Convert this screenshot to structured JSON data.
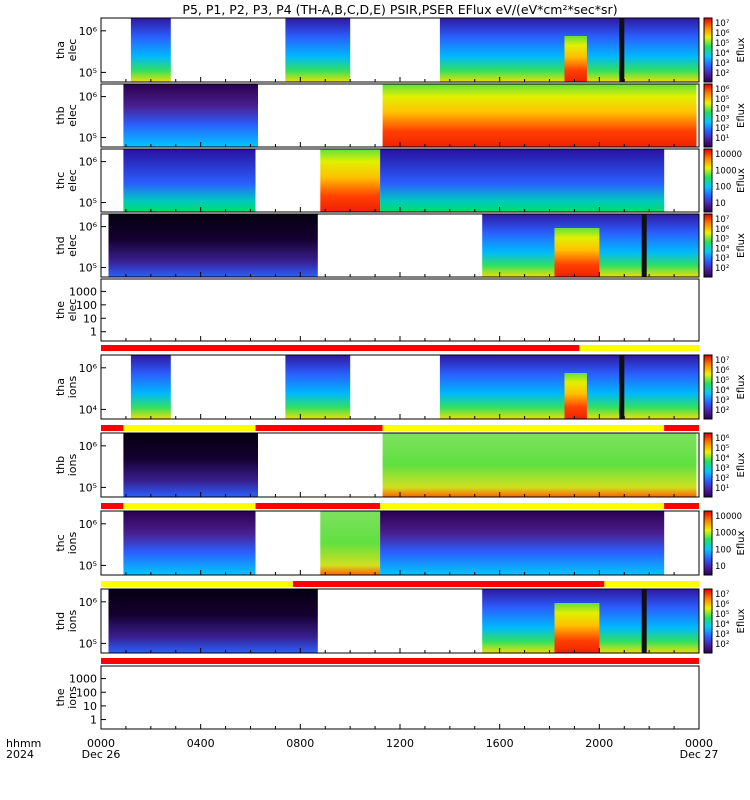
{
  "chart_data": {
    "type": "heatmap",
    "title": "P5, P1, P2, P3, P4 (TH-A,B,C,D,E) PSIR,PSER EFlux eV/(eV*cm²*sec*sr)",
    "colorbar_label": "Eflux",
    "x_axis": {
      "row_label_1": "hhmm",
      "row_label_2": "2024",
      "ticks": [
        "0000",
        "0400",
        "0800",
        "1200",
        "1600",
        "2000",
        "0000"
      ],
      "date_labels": [
        "Dec 26",
        "Dec 27"
      ],
      "range_hours": [
        0,
        24
      ]
    },
    "panels": [
      {
        "name": "tha elec",
        "y_label_1": "tha",
        "y_label_2": "elec",
        "y_ticks": [
          "10⁶",
          "10⁵"
        ],
        "colorbar_ticks": [
          "10⁷",
          "10⁶",
          "10⁵",
          "10⁴",
          "10³",
          "10²"
        ],
        "segments_hours": [
          [
            1.2,
            2.8
          ],
          [
            7.4,
            10.0
          ],
          [
            13.6,
            24.0
          ]
        ]
      },
      {
        "name": "thb elec",
        "y_label_1": "thb",
        "y_label_2": "elec",
        "y_ticks": [
          "10⁶",
          "10⁵"
        ],
        "colorbar_ticks": [
          "10⁶",
          "10⁵",
          "10⁴",
          "10³",
          "10²",
          "10¹"
        ],
        "segments_hours": [
          [
            0.9,
            6.3
          ],
          [
            11.3,
            23.9
          ]
        ]
      },
      {
        "name": "thc elec",
        "y_label_1": "thc",
        "y_label_2": "elec",
        "y_ticks": [
          "10⁶",
          "10⁵"
        ],
        "colorbar_ticks": [
          "10000",
          "1000",
          "100",
          "10"
        ],
        "segments_hours": [
          [
            0.9,
            6.2
          ],
          [
            8.8,
            11.2
          ],
          [
            11.2,
            22.6
          ]
        ]
      },
      {
        "name": "thd elec",
        "y_label_1": "thd",
        "y_label_2": "elec",
        "y_ticks": [
          "10⁶",
          "10⁵"
        ],
        "colorbar_ticks": [
          "10⁷",
          "10⁶",
          "10⁵",
          "10⁴",
          "10³",
          "10²"
        ],
        "segments_hours": [
          [
            0.3,
            8.7
          ],
          [
            15.3,
            24.0
          ]
        ]
      },
      {
        "name": "the elec",
        "y_label_1": "the",
        "y_label_2": "elec",
        "y_ticks": [
          "1000",
          "100",
          "10",
          "1"
        ],
        "segments_hours": []
      },
      {
        "name": "tha ions",
        "y_label_1": "tha",
        "y_label_2": "ions",
        "y_ticks": [
          "10⁶",
          "10⁴"
        ],
        "colorbar_ticks": [
          "10⁷",
          "10⁶",
          "10⁵",
          "10⁴",
          "10³",
          "10²"
        ],
        "segments_hours": [
          [
            1.2,
            2.8
          ],
          [
            7.4,
            10.0
          ],
          [
            13.6,
            24.0
          ]
        ]
      },
      {
        "name": "thb ions",
        "y_label_1": "thb",
        "y_label_2": "ions",
        "y_ticks": [
          "10⁶",
          "10⁵"
        ],
        "colorbar_ticks": [
          "10⁶",
          "10⁵",
          "10⁴",
          "10³",
          "10²",
          "10¹"
        ],
        "segments_hours": [
          [
            0.9,
            6.3
          ],
          [
            11.3,
            23.9
          ]
        ]
      },
      {
        "name": "thc ions",
        "y_label_1": "thc",
        "y_label_2": "ions",
        "y_ticks": [
          "10⁶",
          "10⁵"
        ],
        "colorbar_ticks": [
          "10000",
          "1000",
          "100",
          "10"
        ],
        "segments_hours": [
          [
            0.9,
            6.2
          ],
          [
            8.8,
            11.2
          ],
          [
            11.2,
            22.6
          ]
        ]
      },
      {
        "name": "thd ions",
        "y_label_1": "thd",
        "y_label_2": "ions",
        "y_ticks": [
          "10⁶",
          "10⁵"
        ],
        "colorbar_ticks": [
          "10⁷",
          "10⁶",
          "10⁵",
          "10⁴",
          "10³",
          "10²"
        ],
        "segments_hours": [
          [
            0.3,
            8.7
          ],
          [
            15.3,
            24.0
          ]
        ]
      },
      {
        "name": "the ions",
        "y_label_1": "the",
        "y_label_2": "ions",
        "y_ticks": [
          "1000",
          "100",
          "10",
          "1"
        ],
        "segments_hours": []
      }
    ],
    "status_bars": [
      {
        "after_panel": "the elec",
        "segments": [
          {
            "from": 0,
            "to": 19.2,
            "color": "red"
          },
          {
            "from": 19.2,
            "to": 24,
            "color": "yellow"
          }
        ]
      },
      {
        "after_panel": "tha ions",
        "segments": [
          {
            "from": 0,
            "to": 0.9,
            "color": "red"
          },
          {
            "from": 0.9,
            "to": 6.2,
            "color": "yellow"
          },
          {
            "from": 6.2,
            "to": 11.3,
            "color": "red"
          },
          {
            "from": 11.3,
            "to": 22.6,
            "color": "yellow"
          },
          {
            "from": 22.6,
            "to": 24,
            "color": "red"
          }
        ]
      },
      {
        "after_panel": "thb ions",
        "segments": [
          {
            "from": 0,
            "to": 0.9,
            "color": "red"
          },
          {
            "from": 0.9,
            "to": 6.2,
            "color": "yellow"
          },
          {
            "from": 6.2,
            "to": 11.2,
            "color": "red"
          },
          {
            "from": 11.2,
            "to": 22.6,
            "color": "yellow"
          },
          {
            "from": 22.6,
            "to": 24,
            "color": "red"
          }
        ]
      },
      {
        "after_panel": "thc ions",
        "segments": [
          {
            "from": 0,
            "to": 7.7,
            "color": "yellow"
          },
          {
            "from": 7.7,
            "to": 20.2,
            "color": "red"
          },
          {
            "from": 20.2,
            "to": 24,
            "color": "yellow"
          }
        ]
      },
      {
        "after_panel": "thd ions",
        "segments": [
          {
            "from": 0,
            "to": 24,
            "color": "red"
          }
        ]
      }
    ],
    "colors": {
      "red": "#ff0000",
      "yellow": "#ffff00",
      "background": "#ffffff",
      "axis": "#000000"
    }
  }
}
